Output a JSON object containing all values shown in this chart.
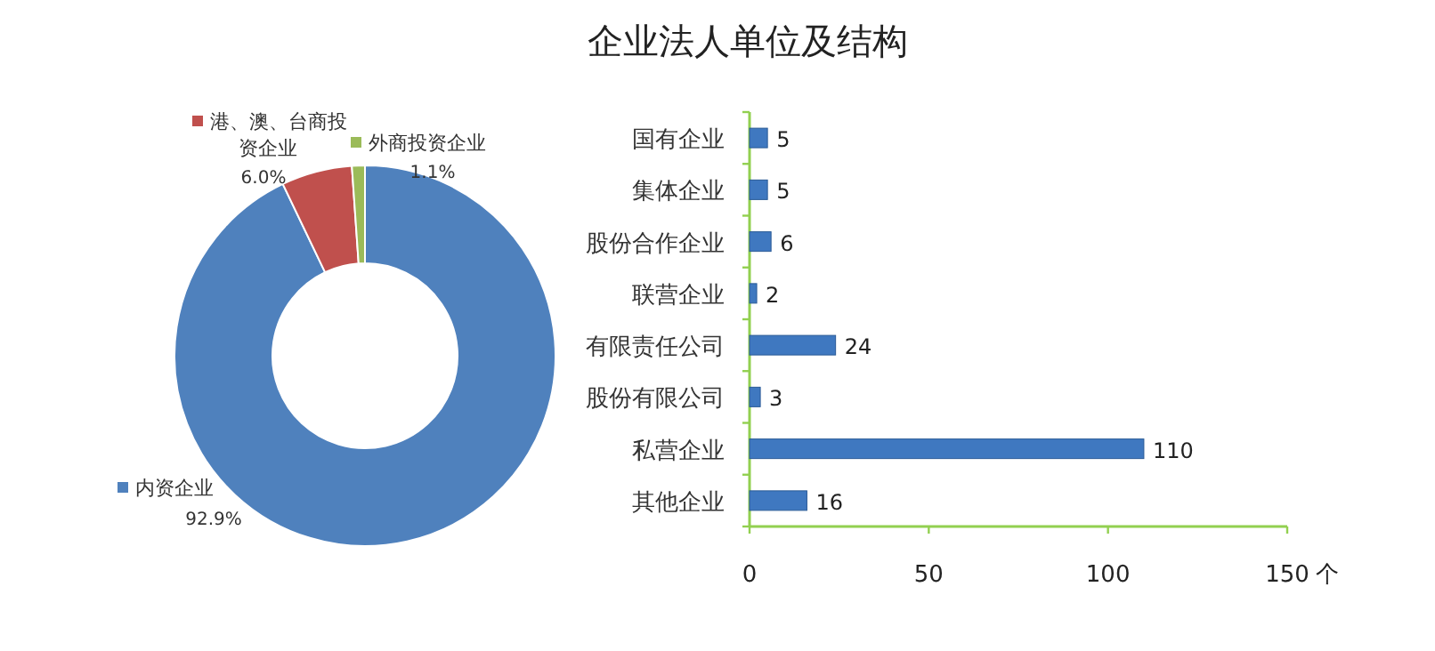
{
  "chart_data": [
    {
      "type": "donut",
      "title": "企业法人单位及结构",
      "categories": [
        "内资企业",
        "港、澳、台商投资企业",
        "外商投资企业"
      ],
      "values": [
        92.9,
        6.0,
        1.1
      ],
      "colors": [
        "#4f81bd",
        "#c0504d",
        "#9bbb59"
      ],
      "value_labels": [
        "92.9%",
        "6.0%",
        "1.1%"
      ],
      "legend": "left"
    },
    {
      "type": "bar",
      "orientation": "horizontal",
      "categories": [
        "国有企业",
        "集体企业",
        "股份合作企业",
        "联营企业",
        "有限责任公司",
        "股份有限公司",
        "私营企业",
        "其他企业"
      ],
      "values": [
        5,
        5,
        6,
        2,
        24,
        3,
        110,
        16
      ],
      "color": "#3f78c0",
      "xlim": [
        0,
        150
      ],
      "xticks": [
        0,
        50,
        100,
        150
      ],
      "xlabel": "个",
      "data_labels": true
    }
  ]
}
